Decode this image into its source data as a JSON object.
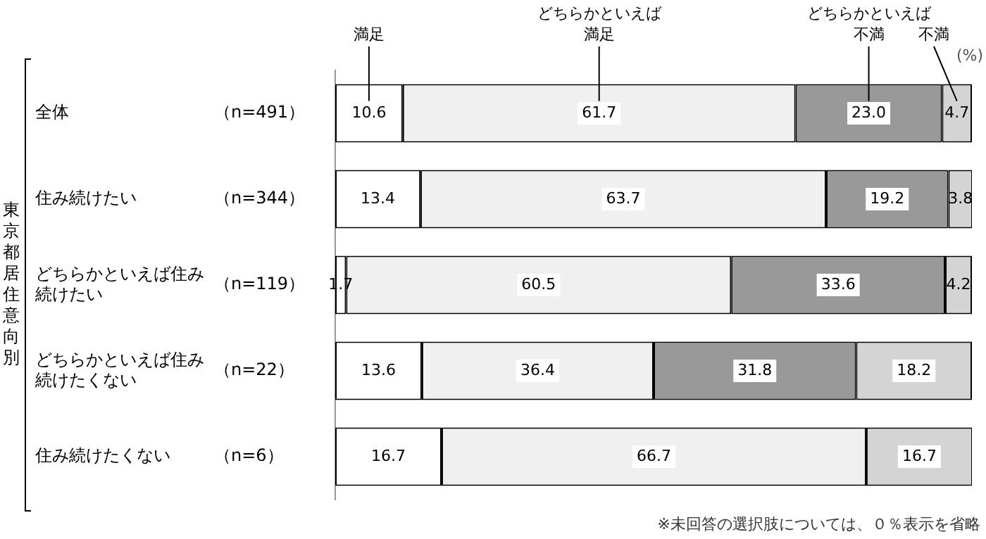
{
  "chart_data": {
    "type": "bar",
    "orientation": "horizontal",
    "stacked": true,
    "ylabel": "東京都居住意向別",
    "categories": [
      "全体",
      "住み続けたい",
      "どちらかといえば住み続けたい",
      "どちらかといえば住み続けたくない",
      "住み続けたくない"
    ],
    "series": [
      {
        "name": "満足",
        "color": "#ffffff",
        "values": [
          10.6,
          13.4,
          1.7,
          13.6,
          16.7
        ],
        "value_labels": [
          "10.6",
          "13.4",
          "1.7",
          "13.6",
          "16.7"
        ]
      },
      {
        "name": "どちらかといえば満足",
        "color": "#f0f0f0",
        "values": [
          61.7,
          63.7,
          60.5,
          36.4,
          66.7
        ],
        "value_labels": [
          "61.7",
          "63.7",
          "60.5",
          "36.4",
          "66.7"
        ]
      },
      {
        "name": "どちらかといえば不満",
        "color": "#999999",
        "values": [
          23.0,
          19.2,
          33.6,
          31.8,
          null
        ],
        "value_labels": [
          "23.0",
          "19.2",
          "33.6",
          "31.8",
          null
        ]
      },
      {
        "name": "不満",
        "color": "#d4d4d4",
        "values": [
          4.7,
          3.8,
          4.2,
          18.2,
          16.7
        ],
        "value_labels": [
          "4.7",
          "3.8",
          "4.2",
          "18.2",
          "16.7"
        ]
      }
    ],
    "xlim": [
      0,
      100
    ],
    "tick_labels": "y",
    "legend": false,
    "annotations": [
      "（n=491）",
      "（n=344）",
      "（n=119）",
      "（n=22）",
      "（n=6）",
      "(%)",
      "※未回答の選択肢については、０％表示を省略"
    ]
  }
}
